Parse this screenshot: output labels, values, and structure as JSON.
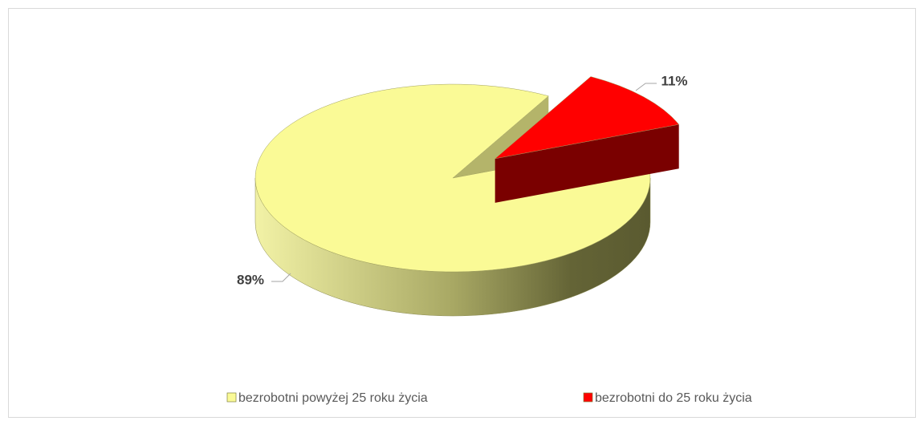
{
  "chart_data": {
    "type": "pie",
    "categories": [
      "bezrobotni powyżej 25 roku życia",
      "bezrobotni do 25 roku życia"
    ],
    "values": [
      89,
      11
    ],
    "value_labels": [
      "89%",
      "11%"
    ],
    "colors": [
      "#fafa96",
      "#ff0000"
    ],
    "exploded": [
      false,
      true
    ],
    "legend": "bottom"
  }
}
